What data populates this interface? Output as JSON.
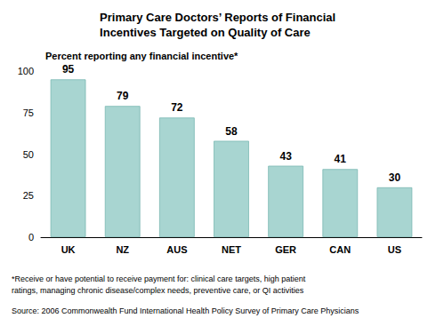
{
  "chart_data": {
    "type": "bar",
    "title": "Primary Care Doctors’ Reports of Financial\nIncentives Targeted on Quality of Care",
    "subtitle": "Percent reporting any financial incentive*",
    "categories": [
      "UK",
      "NZ",
      "AUS",
      "NET",
      "GER",
      "CAN",
      "US"
    ],
    "values": [
      95,
      79,
      72,
      58,
      43,
      41,
      30
    ],
    "color": "#a8d5d1",
    "ylim": [
      0,
      100
    ],
    "yticks": [
      0,
      25,
      50,
      75,
      100
    ],
    "grid": false,
    "data_labels": true,
    "annotations": [
      "*Receive or have potential to receive payment for: clinical care targets, high patient",
      "ratings, managing chronic disease/complex needs, preventive care, or QI activities",
      "Source: 2006 Commonwealth Fund International Health Policy Survey of Primary Care Physicians"
    ]
  }
}
